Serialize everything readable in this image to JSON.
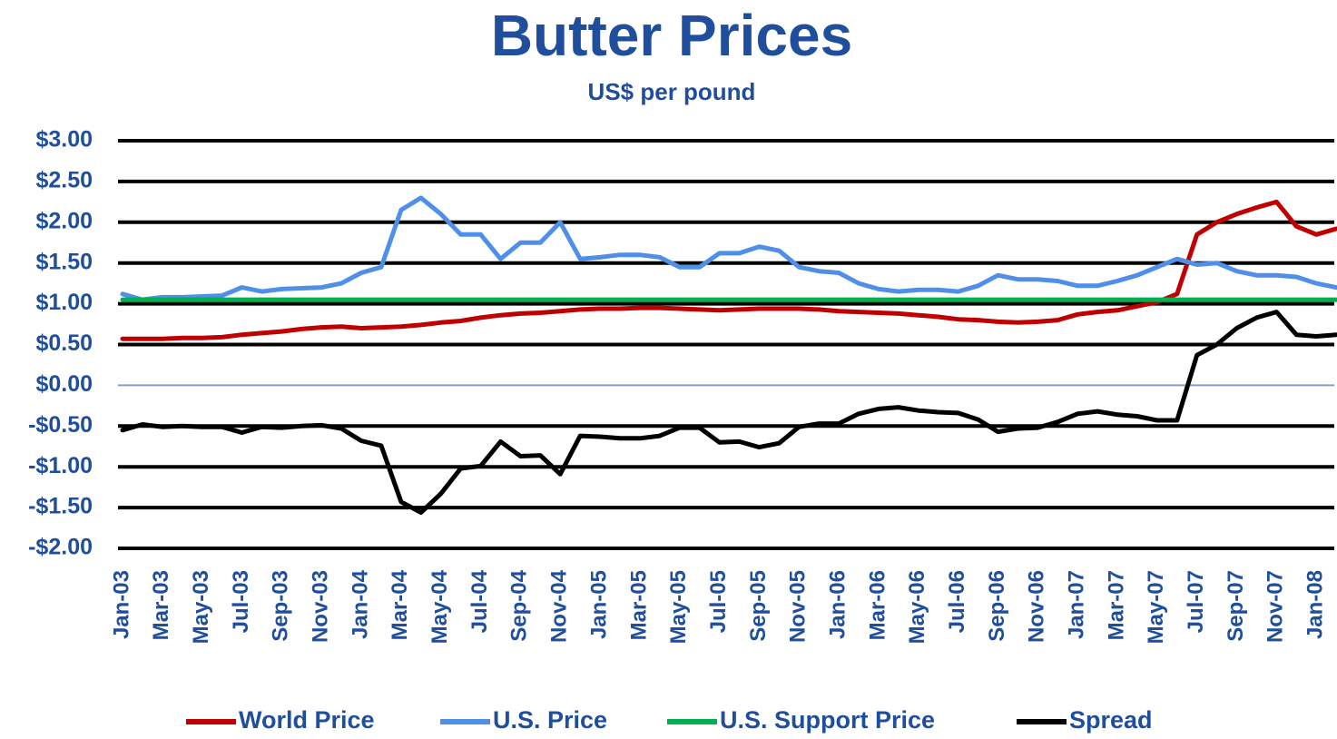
{
  "chart_data": {
    "type": "line",
    "title": "Butter Prices",
    "subtitle": "US$ per pound",
    "categories": [
      "Jan-03",
      null,
      "Mar-03",
      null,
      "May-03",
      null,
      "Jul-03",
      null,
      "Sep-03",
      null,
      "Nov-03",
      null,
      "Jan-04",
      null,
      "Mar-04",
      null,
      "May-04",
      null,
      "Jul-04",
      null,
      "Sep-04",
      null,
      "Nov-04",
      null,
      "Jan-05",
      null,
      "Mar-05",
      null,
      "May-05",
      null,
      "Jul-05",
      null,
      "Sep-05",
      null,
      "Nov-05",
      null,
      "Jan-06",
      null,
      "Mar-06",
      null,
      "May-06",
      null,
      "Jul-06",
      null,
      "Sep-06",
      null,
      "Nov-06",
      null,
      "Jan-07",
      null,
      "Mar-07",
      null,
      "May-07",
      null,
      "Jul-07",
      null,
      "Sep-07",
      null,
      "Nov-07",
      null,
      "Jan-08",
      null
    ],
    "series": [
      {
        "name": "World Price",
        "color": "#c00000",
        "values": [
          0.57,
          0.57,
          0.57,
          0.58,
          0.58,
          0.59,
          0.62,
          0.64,
          0.66,
          0.69,
          0.71,
          0.72,
          0.7,
          0.71,
          0.72,
          0.74,
          0.77,
          0.79,
          0.83,
          0.86,
          0.88,
          0.89,
          0.91,
          0.93,
          0.94,
          0.94,
          0.95,
          0.95,
          0.94,
          0.93,
          0.92,
          0.93,
          0.94,
          0.94,
          0.94,
          0.93,
          0.91,
          0.9,
          0.89,
          0.88,
          0.86,
          0.84,
          0.81,
          0.8,
          0.78,
          0.77,
          0.78,
          0.8,
          0.87,
          0.9,
          0.92,
          0.97,
          1.02,
          1.12,
          1.85,
          2.0,
          2.1,
          2.18,
          2.25,
          1.95,
          1.85,
          1.92
        ]
      },
      {
        "name": "U.S. Price",
        "color": "#4f8fe8",
        "values": [
          1.12,
          1.05,
          1.08,
          1.08,
          1.09,
          1.1,
          1.2,
          1.15,
          1.18,
          1.19,
          1.2,
          1.25,
          1.38,
          1.45,
          2.15,
          2.3,
          2.1,
          1.85,
          1.85,
          1.55,
          1.75,
          1.75,
          2.0,
          1.55,
          1.57,
          1.6,
          1.6,
          1.57,
          1.45,
          1.45,
          1.62,
          1.62,
          1.7,
          1.65,
          1.45,
          1.4,
          1.38,
          1.25,
          1.18,
          1.15,
          1.17,
          1.17,
          1.15,
          1.22,
          1.35,
          1.3,
          1.3,
          1.28,
          1.22,
          1.22,
          1.28,
          1.35,
          1.45,
          1.55,
          1.48,
          1.5,
          1.4,
          1.35,
          1.35,
          1.33,
          1.25,
          1.2
        ]
      },
      {
        "name": "U.S. Support Price",
        "color": "#00b050",
        "values": [
          1.05,
          1.05,
          1.05,
          1.05,
          1.05,
          1.05,
          1.05,
          1.05,
          1.05,
          1.05,
          1.05,
          1.05,
          1.05,
          1.05,
          1.05,
          1.05,
          1.05,
          1.05,
          1.05,
          1.05,
          1.05,
          1.05,
          1.05,
          1.05,
          1.05,
          1.05,
          1.05,
          1.05,
          1.05,
          1.05,
          1.05,
          1.05,
          1.05,
          1.05,
          1.05,
          1.05,
          1.05,
          1.05,
          1.05,
          1.05,
          1.05,
          1.05,
          1.05,
          1.05,
          1.05,
          1.05,
          1.05,
          1.05,
          1.05,
          1.05,
          1.05,
          1.05,
          1.05,
          1.05,
          1.05,
          1.05,
          1.05,
          1.05,
          1.05,
          1.05,
          1.05,
          1.05
        ]
      },
      {
        "name": "Spread",
        "color": "#000000",
        "values": [
          -0.55,
          -0.48,
          -0.51,
          -0.5,
          -0.51,
          -0.51,
          -0.58,
          -0.51,
          -0.52,
          -0.5,
          -0.49,
          -0.53,
          -0.68,
          -0.74,
          -1.43,
          -1.56,
          -1.33,
          -1.02,
          -0.99,
          -0.69,
          -0.87,
          -0.86,
          -1.09,
          -0.62,
          -0.63,
          -0.65,
          -0.65,
          -0.62,
          -0.52,
          -0.52,
          -0.7,
          -0.69,
          -0.76,
          -0.71,
          -0.51,
          -0.47,
          -0.47,
          -0.35,
          -0.29,
          -0.27,
          -0.31,
          -0.33,
          -0.34,
          -0.42,
          -0.57,
          -0.53,
          -0.52,
          -0.45,
          -0.35,
          -0.32,
          -0.36,
          -0.38,
          -0.43,
          -0.43,
          0.37,
          0.5,
          0.7,
          0.83,
          0.9,
          0.62,
          0.6,
          0.62
        ]
      }
    ],
    "ylim": [
      -2,
      3
    ],
    "yticks": [
      {
        "value": -2,
        "label": "-$2.00"
      },
      {
        "value": -1.5,
        "label": "-$1.50"
      },
      {
        "value": -1,
        "label": "-$1.00"
      },
      {
        "value": -0.5,
        "label": "-$0.50"
      },
      {
        "value": 0,
        "label": "$0.00"
      },
      {
        "value": 0.5,
        "label": "$0.50"
      },
      {
        "value": 1,
        "label": "$1.00"
      },
      {
        "value": 1.5,
        "label": "$1.50"
      },
      {
        "value": 2,
        "label": "$2.00"
      },
      {
        "value": 2.5,
        "label": "$2.50"
      },
      {
        "value": 3,
        "label": "$3.00"
      }
    ],
    "grid": true,
    "legend": "bottom"
  }
}
